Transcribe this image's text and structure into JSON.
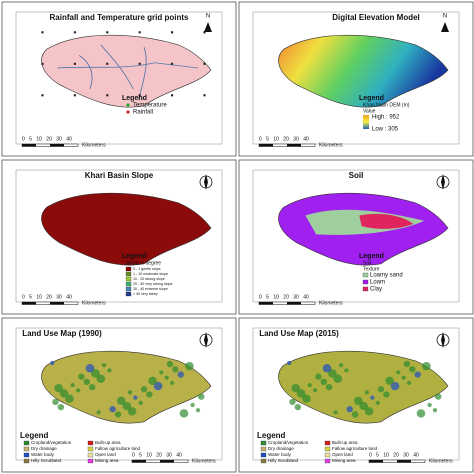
{
  "north_label": "N",
  "panels": [
    {
      "title": "Rainfall and Temperature grid points",
      "legend_title": "Legend",
      "legend": [
        {
          "label": "Temperature",
          "color": "#22aa22"
        },
        {
          "label": "Rainfall",
          "color": "#cc2222"
        }
      ],
      "scale": "0 5 10 20 30 40",
      "scale_unit": "Kilometers"
    },
    {
      "title": "Digital Elevation Model",
      "legend_title": "Legend",
      "legend_subtitle": "Khari basin DEM (m)",
      "legend_note": "Value",
      "legend": [
        {
          "label": "High : 952",
          "color": "#f0a020"
        },
        {
          "label": "Low : 305",
          "color": "#2060c0"
        }
      ],
      "scale": "0 5 10 20 30 40",
      "scale_unit": "Kilometers"
    },
    {
      "title": "Khari Basin Slope",
      "legend_title": "Legend",
      "legend_subtitle": "Slope in degree",
      "legend": [
        {
          "label": "0 - 1 gentle slope",
          "color": "#8b0000"
        },
        {
          "label": "1 - 10 moderate slope",
          "color": "#6b8e23"
        },
        {
          "label": "10 - 20 strong slope",
          "color": "#9acd32"
        },
        {
          "label": "20 - 30 very strong slope",
          "color": "#3cb371"
        },
        {
          "label": "30 - 40 extreme slope",
          "color": "#4682b4"
        },
        {
          "label": "> 40 very steep",
          "color": "#1e3a8a"
        }
      ],
      "scale": "0 5 10 20 30 40",
      "scale_unit": "Kilometers"
    },
    {
      "title": "Soil",
      "legend_title": "Legend",
      "legend_subtitle": "Soil",
      "legend_note": "Texture",
      "legend": [
        {
          "label": "Loamy sand",
          "color": "#9fcf9f"
        },
        {
          "label": "Loam",
          "color": "#a020f0"
        },
        {
          "label": "Clay",
          "color": "#e0245e"
        }
      ],
      "scale": "0 5 10 20 30 40",
      "scale_unit": "Kilometers"
    },
    {
      "title": "Land Use Map (1990)",
      "legend_title": "Legend",
      "legend": [
        {
          "label": "Cropland/vegetation",
          "color": "#2e8b2e"
        },
        {
          "label": "Built-up area",
          "color": "#d02020"
        },
        {
          "label": "Dry drainage",
          "color": "#c8b070"
        },
        {
          "label": "Fallow agriculture land",
          "color": "#d8d040"
        },
        {
          "label": "Water body",
          "color": "#2050c0"
        },
        {
          "label": "Open land",
          "color": "#e8e0a0"
        },
        {
          "label": "Hilly Scrubland",
          "color": "#8a7a40"
        },
        {
          "label": "Mining area",
          "color": "#e040e0"
        }
      ],
      "scale": "0 5 10 20 30 40",
      "scale_unit": "Kilometers"
    },
    {
      "title": "Land Use Map (2015)",
      "legend_title": "Legend",
      "legend": [
        {
          "label": "Cropland/vegetation",
          "color": "#2e8b2e"
        },
        {
          "label": "Built-up area",
          "color": "#d02020"
        },
        {
          "label": "Dry drainage",
          "color": "#c8b070"
        },
        {
          "label": "Fallow agriculture land",
          "color": "#d8d040"
        },
        {
          "label": "Water body",
          "color": "#2050c0"
        },
        {
          "label": "Open land",
          "color": "#e8e0a0"
        },
        {
          "label": "Hilly Scrubland",
          "color": "#8a7a40"
        },
        {
          "label": "Mining area",
          "color": "#e040e0"
        }
      ],
      "scale": "0 5 10 20 30 40",
      "scale_unit": "Kilometers"
    }
  ]
}
